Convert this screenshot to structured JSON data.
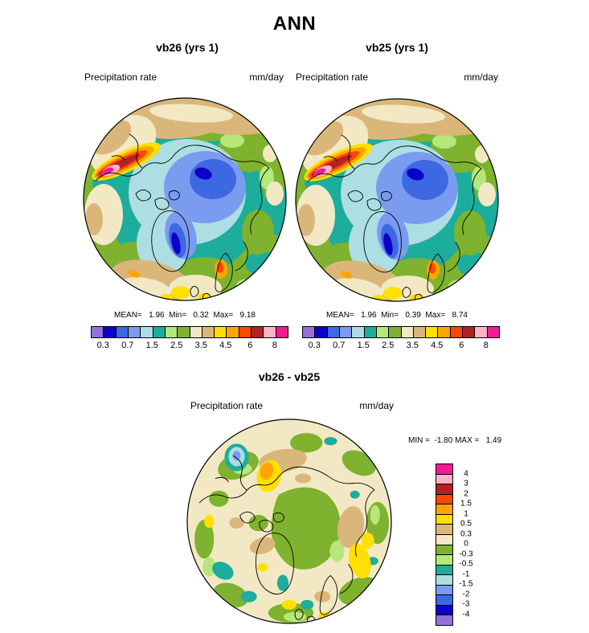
{
  "title": "ANN",
  "palette": {
    "purple": "#9470DB",
    "darkblue": "#0D00C9",
    "royal": "#3C69E1",
    "cornflower": "#7B9BF0",
    "palecyan": "#ACDEE3",
    "teal": "#1CAD9D",
    "lightgreen": "#B5E878",
    "olive": "#7FB22E",
    "cream": "#F2E9C4",
    "tan": "#DBB67B",
    "yellow": "#FFE000",
    "orange": "#FFA400",
    "orangered": "#FF4700",
    "darkred": "#B22222",
    "pink": "#FFB3C5",
    "magenta": "#F51A93"
  },
  "panels": [
    {
      "title": "vb26 (yrs 1)",
      "field_label": "Precipitation rate",
      "units": "mm/day",
      "stats_text": "MEAN=   1.96  Min=   0.32  Max=   9.18"
    },
    {
      "title": "vb25 (yrs 1)",
      "field_label": "Precipitation rate",
      "units": "mm/day",
      "stats_text": "MEAN=   1.96  Min=   0.39  Max=   8.74"
    }
  ],
  "diff": {
    "title": "vb26 - vb25",
    "field_label": "Precipitation rate",
    "units": "mm/day",
    "minmax_text": "MIN =  -1.80 MAX =   1.49"
  },
  "precip_colorbar": {
    "labels": [
      "0.3",
      "0.7",
      "1.5",
      "2.5",
      "3.5",
      "4.5",
      "6",
      "8"
    ],
    "colors": [
      "purple",
      "darkblue",
      "royal",
      "cornflower",
      "palecyan",
      "teal",
      "lightgreen",
      "olive",
      "cream",
      "tan",
      "yellow",
      "orange",
      "orangered",
      "darkred",
      "pink",
      "magenta"
    ]
  },
  "diff_colorbar": {
    "labels": [
      "4",
      "3",
      "2",
      "1.5",
      "1",
      "0.5",
      "0.3",
      "0",
      "-0.3",
      "-0.5",
      "-1",
      "-1.5",
      "-2",
      "-3",
      "-4"
    ],
    "colors": [
      "magenta",
      "pink",
      "darkred",
      "orangered",
      "orange",
      "yellow",
      "tan",
      "cream",
      "olive",
      "lightgreen",
      "teal",
      "palecyan",
      "cornflower",
      "royal",
      "darkblue",
      "purple"
    ]
  },
  "chart_data": {
    "type": "heatmap",
    "subtype": "filled-contour polar stereographic maps (Arctic)",
    "title": "ANN",
    "variable": "Precipitation rate",
    "units": "mm/day",
    "panels": [
      {
        "name": "vb26 (yrs 1)",
        "mean": 1.96,
        "min": 0.32,
        "max": 9.18
      },
      {
        "name": "vb25 (yrs 1)",
        "mean": 1.96,
        "min": 0.39,
        "max": 8.74
      },
      {
        "name": "vb26 - vb25",
        "min": -1.8,
        "max": 1.49
      }
    ],
    "precip_scale_labeled_levels": [
      0.3,
      0.7,
      1.5,
      2.5,
      3.5,
      4.5,
      6,
      8
    ],
    "diff_scale_levels": [
      4,
      3,
      2,
      1.5,
      1,
      0.5,
      0.3,
      0,
      -0.3,
      -0.5,
      -1,
      -1.5,
      -2,
      -3,
      -4
    ],
    "n_color_bands": 16,
    "legend_position": "below maps (top panels), right of map (difference panel)"
  }
}
